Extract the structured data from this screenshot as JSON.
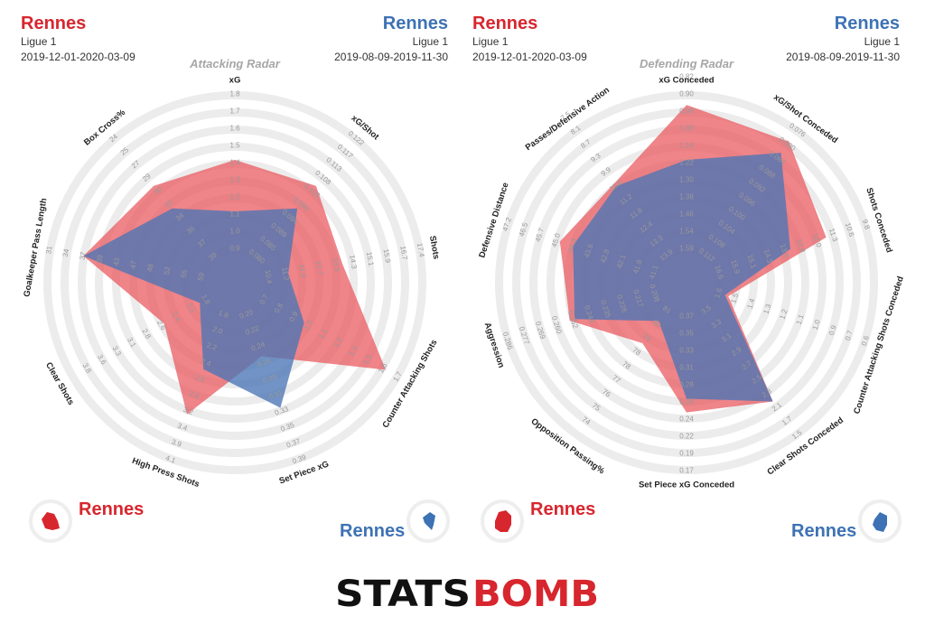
{
  "left_panel": {
    "team_a": {
      "name": "Rennes",
      "league": "Ligue 1",
      "period": "2019-12-01-2020-03-09"
    },
    "team_b": {
      "name": "Rennes",
      "league": "Ligue 1",
      "period": "2019-08-09-2019-11-30"
    },
    "title": "Attacking Radar"
  },
  "right_panel": {
    "team_a": {
      "name": "Rennes",
      "league": "Ligue 1",
      "period": "2019-12-01-2020-03-09"
    },
    "team_b": {
      "name": "Rennes",
      "league": "Ligue 1",
      "period": "2019-08-09-2019-11-30"
    },
    "title": "Defending Radar"
  },
  "colors": {
    "team_a": "#e9545b",
    "team_b": "#4a74b5",
    "ring": "#ececec"
  },
  "brand": {
    "part1": "STATS",
    "part2": "BOMB"
  },
  "chart_data": [
    {
      "type": "radar",
      "title": "Attacking Radar",
      "axes": [
        {
          "name": "xG",
          "ticks": [
            "0.9",
            "1.0",
            "1.1",
            "1.2",
            "1.3",
            "1.4",
            "1.5",
            "1.6",
            "1.7",
            "1.8"
          ]
        },
        {
          "name": "xG/Shot",
          "ticks": [
            "0.080",
            "0.085",
            "0.089",
            "0.094",
            "0.099",
            "0.103",
            "0.108",
            "0.113",
            "0.117",
            "0.122"
          ]
        },
        {
          "name": "Shots",
          "ticks": [
            "10.4",
            "11.2",
            "11.9",
            "12.7",
            "13.5",
            "14.3",
            "15.1",
            "15.9",
            "16.7",
            "17.4"
          ]
        },
        {
          "name": "Counter Attacking Shots",
          "ticks": [
            "0.7",
            "0.8",
            "0.9",
            "1.0",
            "1.1",
            "1.2",
            "1.3",
            "1.5",
            "1.6",
            "1.7"
          ]
        },
        {
          "name": "Set Piece xG",
          "ticks": [
            "0.20",
            "0.22",
            "0.24",
            "0.26",
            "0.29",
            "0.31",
            "0.33",
            "0.35",
            "0.37",
            "0.39"
          ]
        },
        {
          "name": "High Press Shots",
          "ticks": [
            "1.8",
            "2.0",
            "2.2",
            "2.4",
            "2.6",
            "2.9",
            "3.2",
            "3.4",
            "3.9",
            "4.1"
          ]
        },
        {
          "name": "Clear Shots",
          "ticks": [
            "1.8",
            "2.1",
            "2.4",
            "2.6",
            "2.8",
            "3.1",
            "3.3",
            "3.6",
            "3.8"
          ]
        },
        {
          "name": "Goalkeeper Pass Length",
          "ticks": [
            "59",
            "55",
            "52",
            "48",
            "47",
            "43",
            "39",
            "37",
            "34",
            "31"
          ]
        },
        {
          "name": "Box Cross%",
          "ticks": [
            "39",
            "37",
            "35",
            "34",
            "32",
            "30",
            "29",
            "27",
            "25",
            "24"
          ]
        }
      ],
      "series": [
        {
          "name": "Rennes",
          "period": "2019-12-01-2020-03-09",
          "values": [
            0.6,
            0.62,
            0.52,
            0.9,
            0.34,
            0.7,
            0.36,
            0.78,
            0.62
          ]
        },
        {
          "name": "Rennes",
          "period": "2019-08-09-2019-11-30",
          "values": [
            0.3,
            0.45,
            0.2,
            0.35,
            0.66,
            0.42,
            0.12,
            0.78,
            0.45
          ]
        }
      ]
    },
    {
      "type": "radar",
      "title": "Defending Radar",
      "axes": [
        {
          "name": "xG Conceded",
          "ticks": [
            "1.59",
            "1.54",
            "1.46",
            "1.38",
            "1.30",
            "1.22",
            "1.14",
            "1.06",
            "0.98",
            "0.90",
            "0.82"
          ]
        },
        {
          "name": "xG/Shot Conceded",
          "ticks": [
            "0.112",
            "0.108",
            "0.104",
            "0.100",
            "0.096",
            "0.092",
            "0.088",
            "0.084",
            "0.080",
            "0.076"
          ]
        },
        {
          "name": "Shots Conceded",
          "ticks": [
            "16.6",
            "15.9",
            "15.1",
            "14.3",
            "13.5",
            "12.8",
            "12.0",
            "11.3",
            "10.6",
            "9.8"
          ]
        },
        {
          "name": "Counter Attacking Shots Conceded",
          "ticks": [
            "1.6",
            "1.5",
            "1.4",
            "1.3",
            "1.2",
            "1.1",
            "1.0",
            "0.9",
            "0.7",
            "0.6"
          ]
        },
        {
          "name": "Clear Shots Conceded",
          "ticks": [
            "3.5",
            "3.3",
            "3.1",
            "2.9",
            "2.7",
            "2.5",
            "2.3",
            "2.1",
            "1.7",
            "1.5"
          ]
        },
        {
          "name": "Set Piece xG Conceded",
          "ticks": [
            "0.37",
            "0.35",
            "0.33",
            "0.31",
            "0.28",
            "0.26",
            "0.24",
            "0.22",
            "0.19",
            "0.17"
          ]
        },
        {
          "name": "Opposition Passing%",
          "ticks": [
            "81",
            "80",
            "79",
            "78",
            "78",
            "77",
            "76",
            "75",
            "74"
          ]
        },
        {
          "name": "Aggression",
          "ticks": [
            "0.208",
            "0.217",
            "0.226",
            "0.235",
            "0.244",
            "0.252",
            "0.260",
            "0.269",
            "0.277",
            "0.286"
          ]
        },
        {
          "name": "Defensive Distance",
          "ticks": [
            "41.1",
            "41.9",
            "42.1",
            "42.8",
            "43.6",
            "44.3",
            "45.0",
            "45.7",
            "46.5",
            "47.2"
          ]
        },
        {
          "name": "Passes/Defensive Action",
          "ticks": [
            "13.9",
            "13.3",
            "12.4",
            "11.8",
            "11.2",
            "10.6",
            "9.9",
            "9.3",
            "8.7",
            "8.1",
            "7.5"
          ]
        }
      ],
      "series": [
        {
          "name": "Rennes",
          "period": "2019-12-01-2020-03-09",
          "values": [
            0.92,
            0.9,
            0.74,
            0.14,
            0.74,
            0.64,
            0.32,
            0.6,
            0.66,
            0.6
          ]
        },
        {
          "name": "Rennes",
          "period": "2019-08-09-2019-11-30",
          "values": [
            0.6,
            0.82,
            0.52,
            0.12,
            0.74,
            0.56,
            0.16,
            0.57,
            0.58,
            0.58
          ]
        }
      ]
    }
  ]
}
